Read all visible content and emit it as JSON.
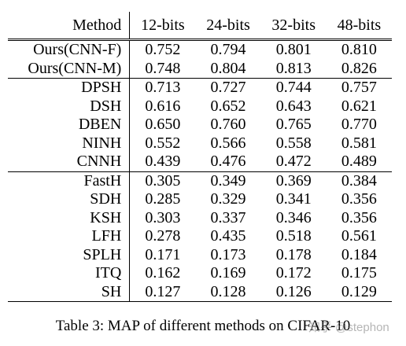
{
  "table": {
    "headers": [
      "Method",
      "12-bits",
      "24-bits",
      "32-bits",
      "48-bits"
    ],
    "groups": [
      [
        {
          "method": "Ours(CNN-F)",
          "values": [
            "0.752",
            "0.794",
            "0.801",
            "0.810"
          ]
        },
        {
          "method": "Ours(CNN-M)",
          "values": [
            "0.748",
            "0.804",
            "0.813",
            "0.826"
          ]
        }
      ],
      [
        {
          "method": "DPSH",
          "values": [
            "0.713",
            "0.727",
            "0.744",
            "0.757"
          ]
        },
        {
          "method": "DSH",
          "values": [
            "0.616",
            "0.652",
            "0.643",
            "0.621"
          ]
        },
        {
          "method": "DBEN",
          "values": [
            "0.650",
            "0.760",
            "0.765",
            "0.770"
          ]
        },
        {
          "method": "NINH",
          "values": [
            "0.552",
            "0.566",
            "0.558",
            "0.581"
          ]
        },
        {
          "method": "CNNH",
          "values": [
            "0.439",
            "0.476",
            "0.472",
            "0.489"
          ]
        }
      ],
      [
        {
          "method": "FastH",
          "values": [
            "0.305",
            "0.349",
            "0.369",
            "0.384"
          ]
        },
        {
          "method": "SDH",
          "values": [
            "0.285",
            "0.329",
            "0.341",
            "0.356"
          ]
        },
        {
          "method": "KSH",
          "values": [
            "0.303",
            "0.337",
            "0.346",
            "0.356"
          ]
        },
        {
          "method": "LFH",
          "values": [
            "0.278",
            "0.435",
            "0.518",
            "0.561"
          ]
        },
        {
          "method": "SPLH",
          "values": [
            "0.171",
            "0.173",
            "0.178",
            "0.184"
          ]
        },
        {
          "method": "ITQ",
          "values": [
            "0.162",
            "0.169",
            "0.172",
            "0.175"
          ]
        },
        {
          "method": "SH",
          "values": [
            "0.127",
            "0.128",
            "0.126",
            "0.129"
          ]
        }
      ]
    ]
  },
  "caption": "Table 3: MAP of different methods on CIFAR-10",
  "watermark": "知乎 @stephon"
}
